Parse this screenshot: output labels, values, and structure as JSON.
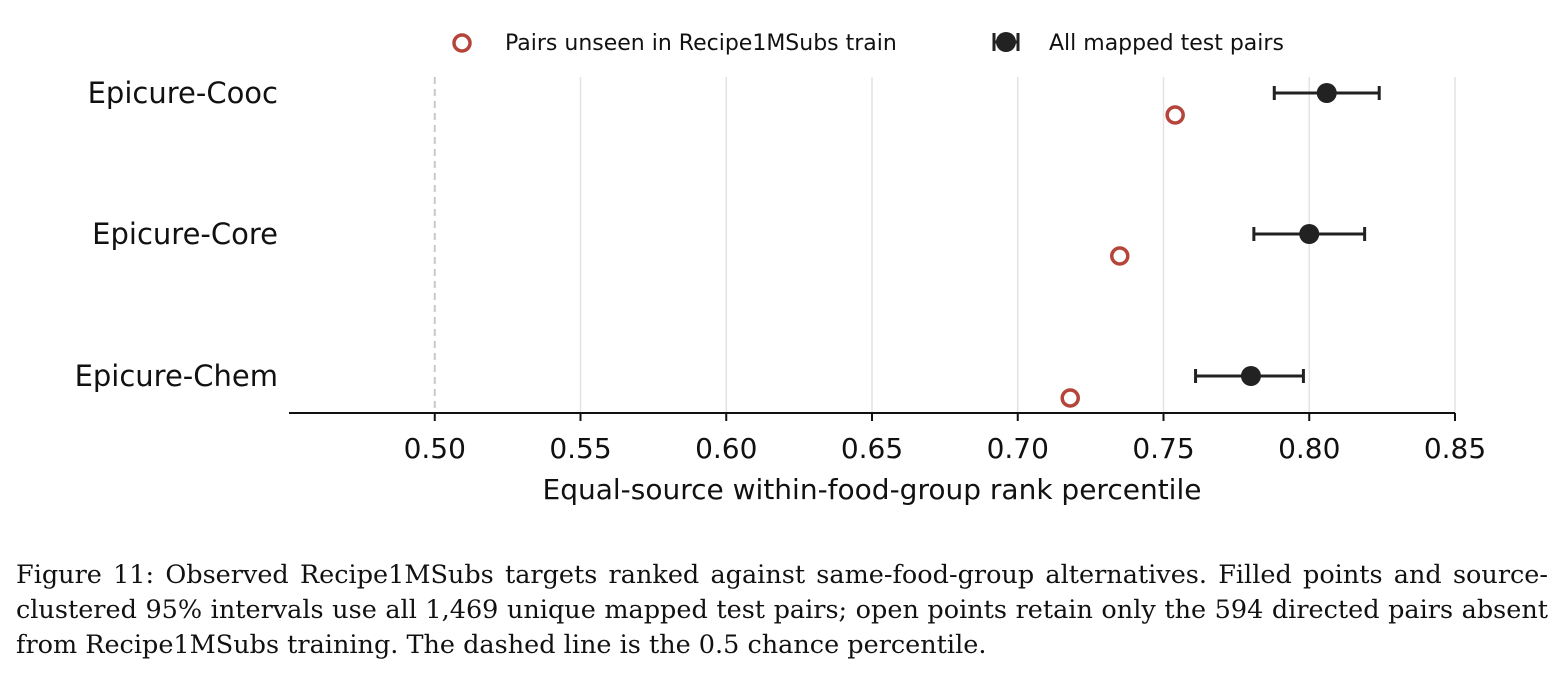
{
  "chart_data": {
    "type": "scatter",
    "xlabel": "Equal-source within-food-group rank percentile",
    "xlim": [
      0.45,
      0.85
    ],
    "x_ticks": [
      "0.50",
      "0.55",
      "0.60",
      "0.65",
      "0.70",
      "0.75",
      "0.80",
      "0.85"
    ],
    "x_tick_values": [
      0.5,
      0.55,
      0.6,
      0.65,
      0.7,
      0.75,
      0.8,
      0.85
    ],
    "reference_line": 0.5,
    "grid": "vertical",
    "legend_position": "top-center",
    "categories": [
      "Epicure-Cooc",
      "Epicure-Core",
      "Epicure-Chem"
    ],
    "series": [
      {
        "name": "Pairs unseen in Recipe1MSubs train",
        "marker": "open-circle",
        "color": "#b5453a",
        "values": [
          0.754,
          0.735,
          0.718
        ]
      },
      {
        "name": "All mapped test pairs",
        "marker": "filled-circle",
        "color": "#222222",
        "values": [
          0.806,
          0.8,
          0.78
        ],
        "ci_low": [
          0.788,
          0.781,
          0.761
        ],
        "ci_high": [
          0.824,
          0.819,
          0.798
        ]
      }
    ]
  },
  "caption": "Figure 11: Observed Recipe1MSubs targets ranked against same-food-group alternatives. Filled points and source-clustered 95% intervals use all 1,469 unique mapped test pairs; open points retain only the 594 directed pairs absent from Recipe1MSubs training. The dashed line is the 0.5 chance percentile."
}
